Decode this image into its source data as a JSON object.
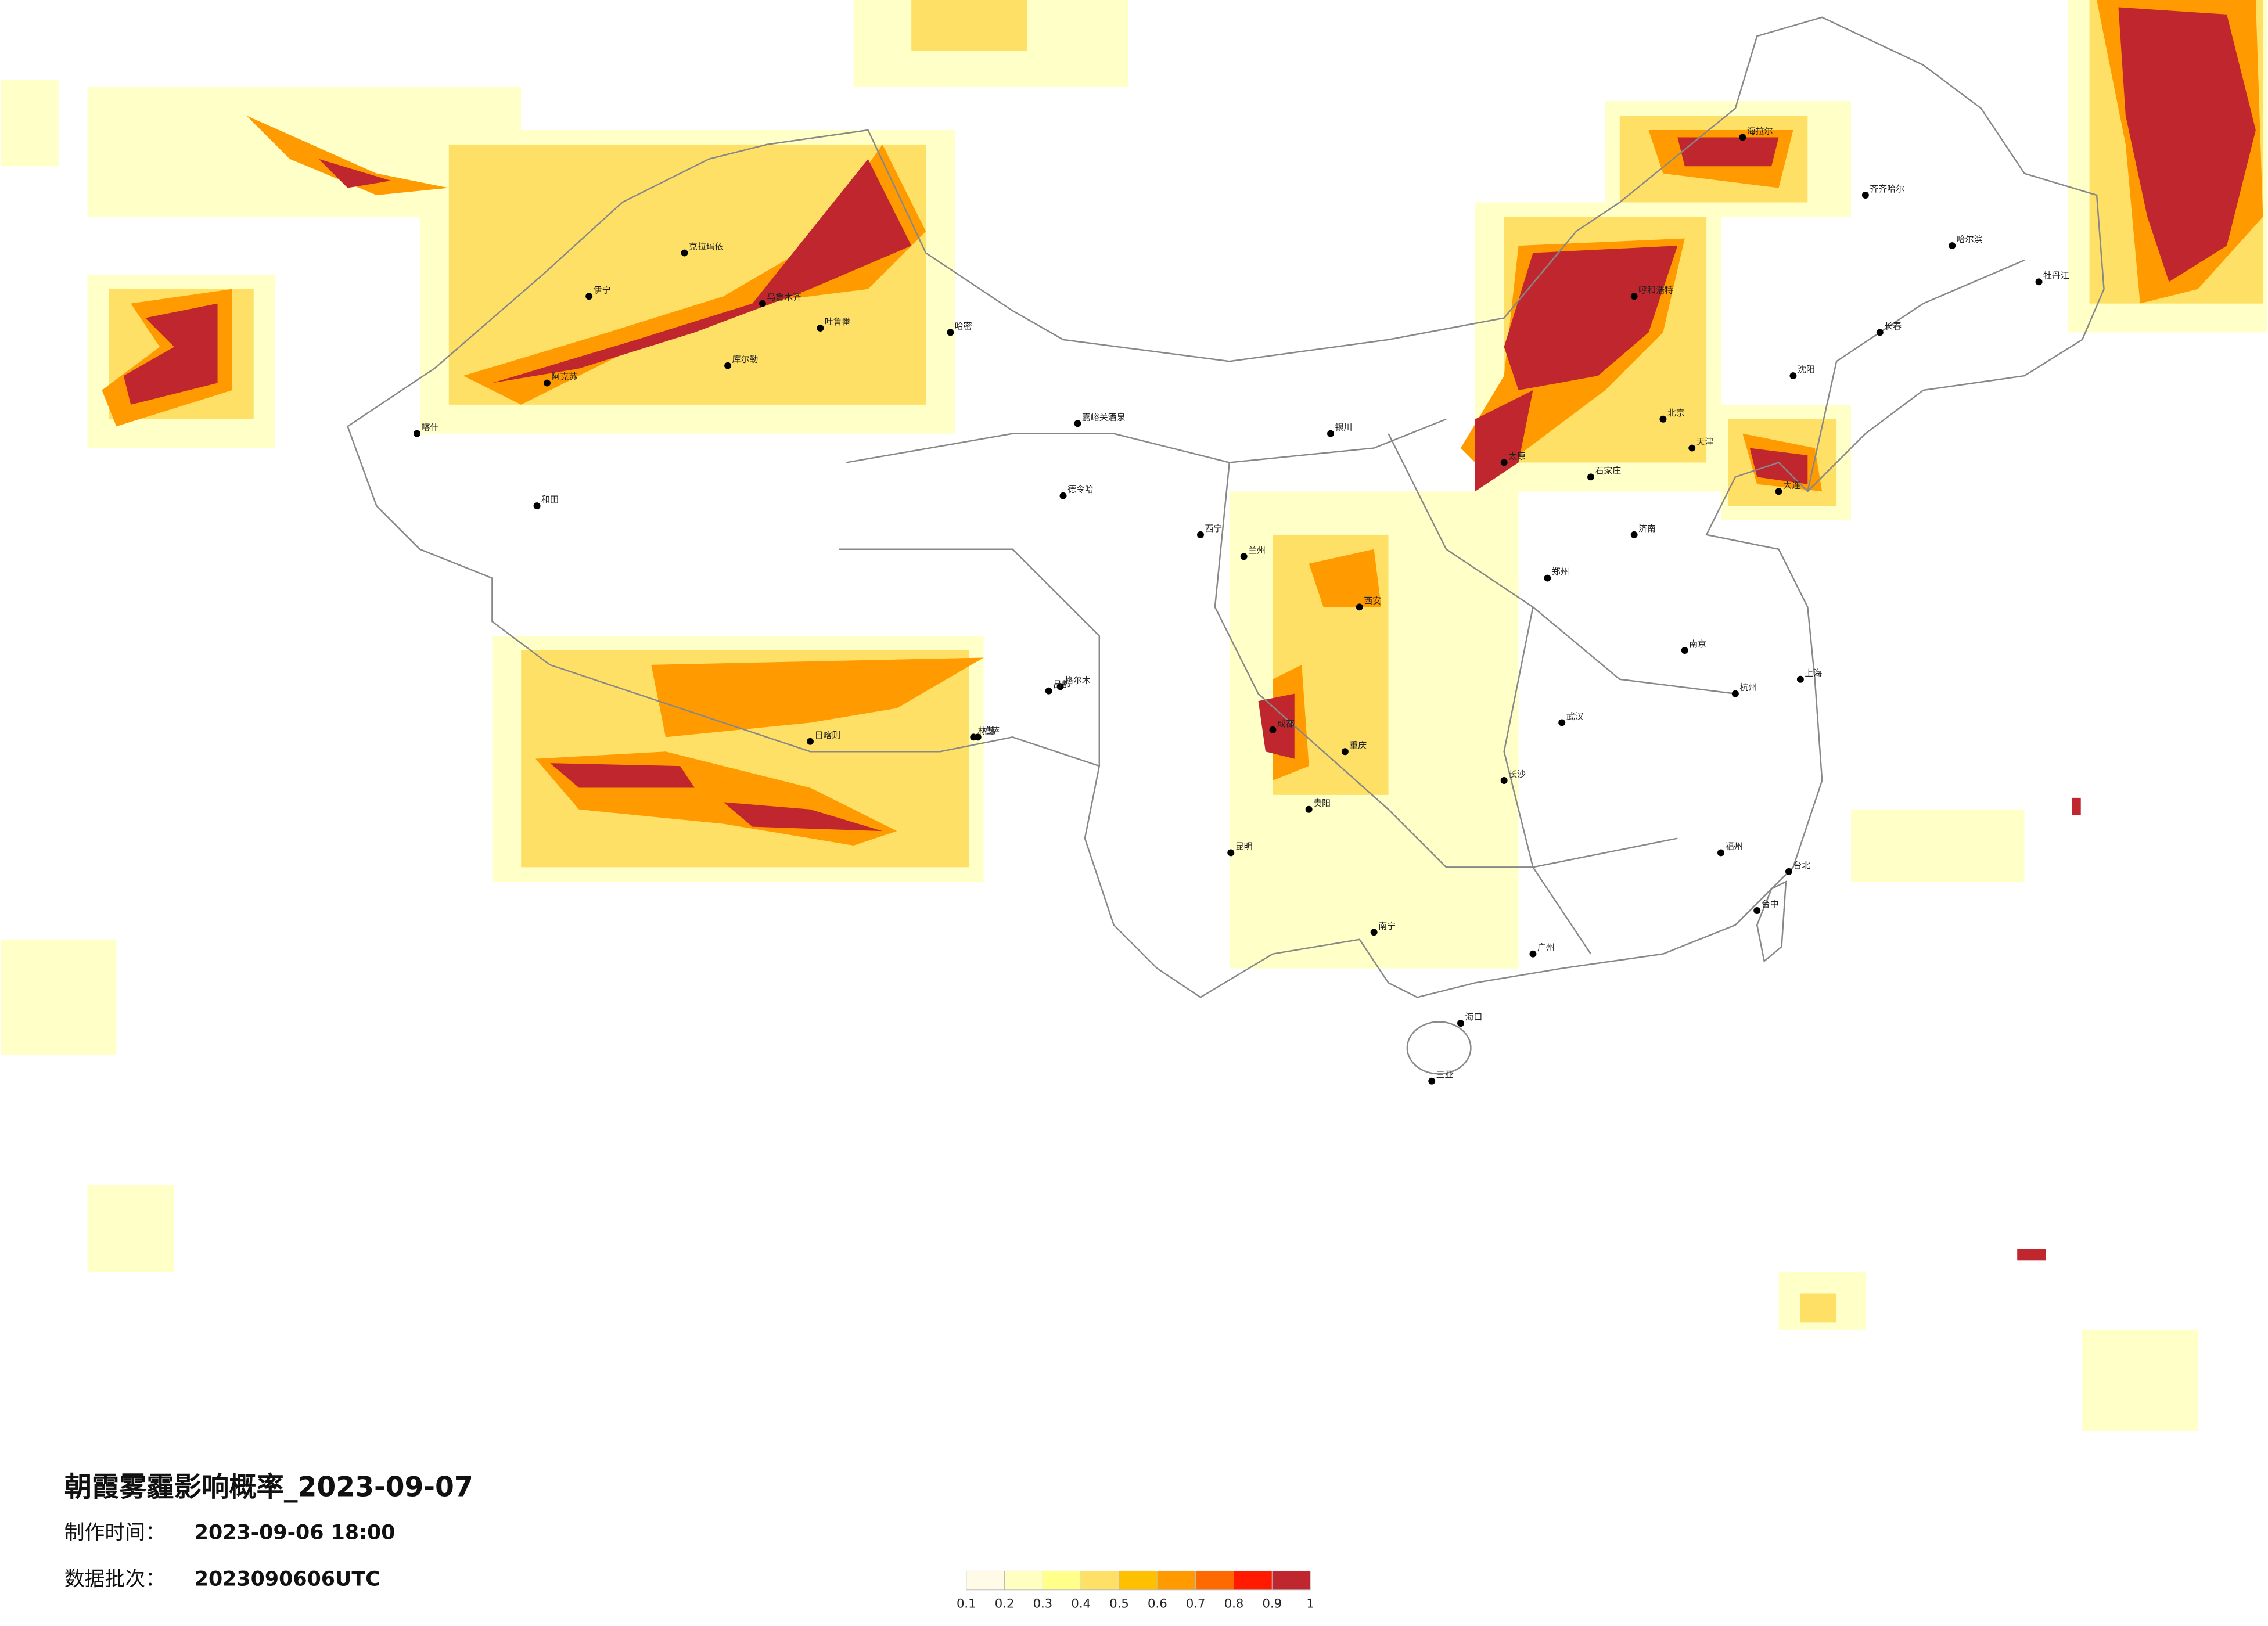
{
  "header": {
    "title": "朝霞雾霾影响概率_2023-09-07",
    "made_label": "制作时间：",
    "made_value": "2023-09-06 18:00",
    "batch_label": "数据批次：",
    "batch_value": "2023090606UTC"
  },
  "legend": {
    "ticks": [
      0.1,
      0.2,
      0.3,
      0.4,
      0.5,
      0.6,
      0.7,
      0.8,
      0.9,
      1
    ],
    "colors": [
      "#fffbe6",
      "#ffffc2",
      "#ffff8a",
      "#ffe066",
      "#ffc000",
      "#ff9a00",
      "#ff6a00",
      "#ff1a00",
      "#c0262d"
    ]
  },
  "cities": [
    "伊宁",
    "克拉玛依",
    "乌鲁木齐",
    "吐鲁番",
    "哈密",
    "库尔勒",
    "阿克苏",
    "喀什",
    "和田",
    "德令哈",
    "格尔木",
    "嘉峪关酒泉",
    "西宁",
    "兰州",
    "拉萨",
    "日喀则",
    "林芝",
    "昌都",
    "成都",
    "重庆",
    "昆明",
    "贵阳",
    "南宁",
    "海口",
    "三亚",
    "广州",
    "福州",
    "台北",
    "台中",
    "杭州",
    "上海",
    "南京",
    "武汉",
    "长沙",
    "郑州",
    "西安",
    "太原",
    "石家庄",
    "北京",
    "天津",
    "济南",
    "沈阳",
    "长春",
    "哈尔滨",
    "呼和浩特",
    "银川",
    "海拉尔",
    "齐齐哈尔",
    "牡丹江",
    "大连"
  ]
}
